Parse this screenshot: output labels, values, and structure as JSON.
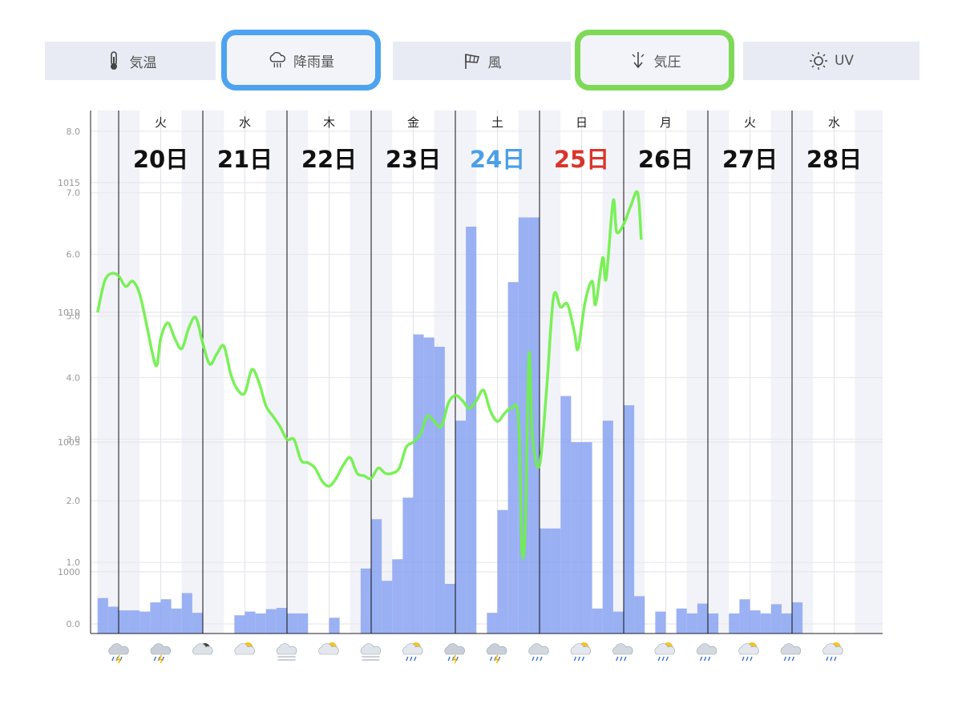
{
  "tabs": [
    {
      "label": "気温",
      "icon": "thermometer-icon"
    },
    {
      "label": "降雨量",
      "icon": "rain-cloud-icon",
      "selected": true
    },
    {
      "label": "風",
      "icon": "wind-sock-icon"
    },
    {
      "label": "気圧",
      "icon": "pressure-arrow-icon",
      "selected": true
    },
    {
      "label": "UV",
      "icon": "sun-icon"
    }
  ],
  "colors": {
    "rain_bar": "#8aa3f2",
    "pressure_line": "#6ff04a",
    "saturday": "#4a9fe8",
    "sunday": "#d9342b",
    "weekday": "#111111",
    "selected_rain_border": "#4da3f0",
    "selected_pressure_border": "#7ed957"
  },
  "chart_data": {
    "type": "bar+line",
    "days": [
      {
        "weekday": "火",
        "date": "20日",
        "kind": "weekday"
      },
      {
        "weekday": "水",
        "date": "21日",
        "kind": "weekday"
      },
      {
        "weekday": "木",
        "date": "22日",
        "kind": "weekday"
      },
      {
        "weekday": "金",
        "date": "23日",
        "kind": "weekday"
      },
      {
        "weekday": "土",
        "date": "24日",
        "kind": "saturday"
      },
      {
        "weekday": "日",
        "date": "25日",
        "kind": "sunday"
      },
      {
        "weekday": "月",
        "date": "26日",
        "kind": "weekday"
      },
      {
        "weekday": "火",
        "date": "27日",
        "kind": "weekday"
      },
      {
        "weekday": "水",
        "date": "28日",
        "kind": "weekday"
      }
    ],
    "rain_axis": {
      "ticks": [
        "0.0",
        "1.0",
        "2.0",
        "3.0",
        "4.0",
        "5.0",
        "6.0",
        "7.0",
        "8.0"
      ],
      "range": [
        0,
        8
      ]
    },
    "pressure_axis": {
      "ticks": [
        "1000",
        "1005",
        "1010",
        "1015"
      ],
      "range": [
        998,
        1015
      ]
    },
    "rain_series": {
      "step_hours": 3,
      "start_hour": -6,
      "values": [
        0.42,
        0.28,
        0.22,
        0.22,
        0.2,
        0.35,
        0.4,
        0.25,
        0.5,
        0.18,
        0,
        0,
        0,
        0.14,
        0.2,
        0.17,
        0.24,
        0.26,
        0.17,
        0.17,
        0,
        0,
        0.1,
        0,
        0,
        0.9,
        1.7,
        0.7,
        1.05,
        2.05,
        4.7,
        4.65,
        4.5,
        0.65,
        3.3,
        6.45,
        0,
        0.18,
        1.85,
        5.55,
        6.6,
        6.6,
        1.55,
        1.55,
        3.7,
        2.95,
        2.95,
        0.25,
        3.3,
        0.2,
        3.55,
        0.45,
        0,
        0.2,
        0,
        0.25,
        0.17,
        0.33,
        0.17,
        0,
        0.17,
        0.4,
        0.22,
        0.17,
        0.32,
        0.17,
        0.35
      ]
    },
    "pressure_series": {
      "start_hour": -6,
      "points": [
        [
          -6,
          1010
        ],
        [
          -4,
          1011.2
        ],
        [
          -2,
          1011.5
        ],
        [
          0,
          1011.4
        ],
        [
          2,
          1011
        ],
        [
          4,
          1011.2
        ],
        [
          6,
          1010.7
        ],
        [
          8,
          1009.5
        ],
        [
          10,
          1008.2
        ],
        [
          11,
          1008
        ],
        [
          12,
          1009
        ],
        [
          14,
          1009.6
        ],
        [
          16,
          1009
        ],
        [
          18,
          1008.6
        ],
        [
          20,
          1009.4
        ],
        [
          22,
          1009.8
        ],
        [
          24,
          1008.8
        ],
        [
          26,
          1008
        ],
        [
          28,
          1008.4
        ],
        [
          30,
          1008.7
        ],
        [
          32,
          1007.6
        ],
        [
          34,
          1007
        ],
        [
          36,
          1006.9
        ],
        [
          38,
          1007.8
        ],
        [
          40,
          1007.3
        ],
        [
          42,
          1006.4
        ],
        [
          44,
          1006
        ],
        [
          46,
          1005.6
        ],
        [
          48,
          1005.1
        ],
        [
          50,
          1005.1
        ],
        [
          52,
          1004.3
        ],
        [
          54,
          1004.2
        ],
        [
          56,
          1004
        ],
        [
          58,
          1003.5
        ],
        [
          60,
          1003.3
        ],
        [
          62,
          1003.6
        ],
        [
          64,
          1004.1
        ],
        [
          66,
          1004.4
        ],
        [
          68,
          1003.8
        ],
        [
          70,
          1003.7
        ],
        [
          72,
          1003.6
        ],
        [
          74,
          1004
        ],
        [
          76,
          1003.8
        ],
        [
          78,
          1003.8
        ],
        [
          80,
          1004
        ],
        [
          82,
          1004.8
        ],
        [
          84,
          1005
        ],
        [
          86,
          1005.3
        ],
        [
          88,
          1006
        ],
        [
          90,
          1005.8
        ],
        [
          92,
          1005.6
        ],
        [
          94,
          1006.5
        ],
        [
          96,
          1006.8
        ],
        [
          98,
          1006.6
        ],
        [
          100,
          1006.3
        ],
        [
          102,
          1006.6
        ],
        [
          104,
          1007
        ],
        [
          106,
          1006.2
        ],
        [
          108,
          1005.8
        ],
        [
          110,
          1006.1
        ],
        [
          112,
          1006.3
        ],
        [
          114,
          1005.9
        ],
        [
          115,
          1000.8
        ],
        [
          116,
          1002
        ],
        [
          117,
          1008.4
        ],
        [
          118,
          1005.2
        ],
        [
          120,
          1004.1
        ],
        [
          122,
          1007
        ],
        [
          124,
          1010.6
        ],
        [
          126,
          1010.2
        ],
        [
          128,
          1010.3
        ],
        [
          130,
          1009.2
        ],
        [
          131,
          1008.6
        ],
        [
          133,
          1010.4
        ],
        [
          135,
          1011.2
        ],
        [
          136,
          1010.3
        ],
        [
          138,
          1012.1
        ],
        [
          139,
          1011.3
        ],
        [
          141,
          1014.3
        ],
        [
          142,
          1013.1
        ],
        [
          144,
          1013.4
        ],
        [
          146,
          1014.1
        ],
        [
          148,
          1014.6
        ],
        [
          149,
          1012.8
        ]
      ]
    }
  },
  "weather_icons": [
    "rain-thunder-icon",
    "rain-thunder-icon",
    "moon-cloud-icon",
    "sun-cloud-icon",
    "fog-icon",
    "sun-cloud-icon",
    "fog-icon",
    "sun-rain-icon",
    "rain-thunder-icon",
    "rain-thunder-icon",
    "cloud-rain-icon",
    "sun-rain-icon",
    "cloud-rain-icon",
    "sun-rain-icon",
    "cloud-rain-icon",
    "sun-rain-icon",
    "cloud-rain-icon",
    "sun-rain-icon"
  ]
}
